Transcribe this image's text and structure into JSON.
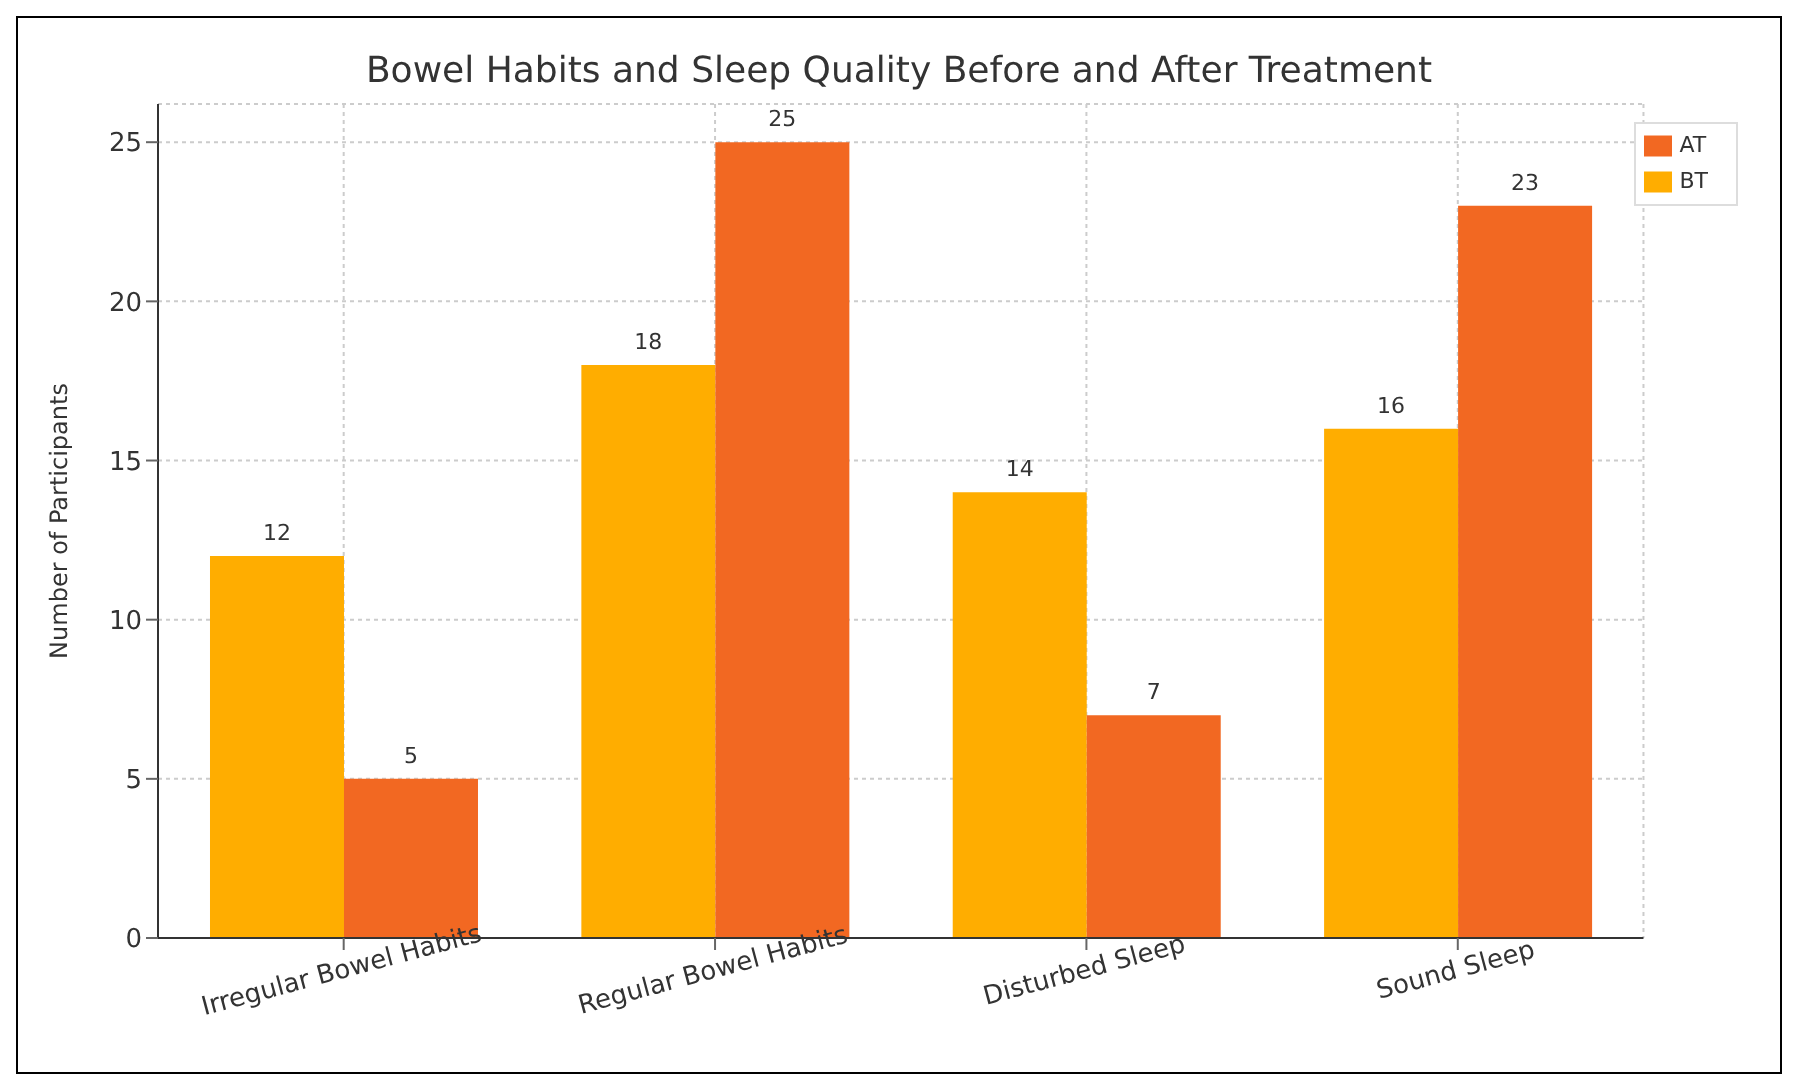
{
  "chart_data": {
    "type": "bar",
    "title": "Bowel Habits and Sleep Quality Before and After Treatment",
    "ylabel": "Number of Participants",
    "categories": [
      "Irregular Bowel Habits",
      "Regular Bowel Habits",
      "Disturbed Sleep",
      "Sound Sleep"
    ],
    "series": [
      {
        "name": "BT",
        "color": "#ffad00",
        "values": [
          12,
          18,
          14,
          16
        ]
      },
      {
        "name": "AT",
        "color": "#f26822",
        "values": [
          5,
          25,
          7,
          23
        ]
      }
    ],
    "ylim": [
      0,
      26.2
    ],
    "yticks": [
      0,
      5,
      10,
      15,
      20,
      25
    ],
    "grid": true,
    "legend": "top right",
    "data_labels": true
  }
}
